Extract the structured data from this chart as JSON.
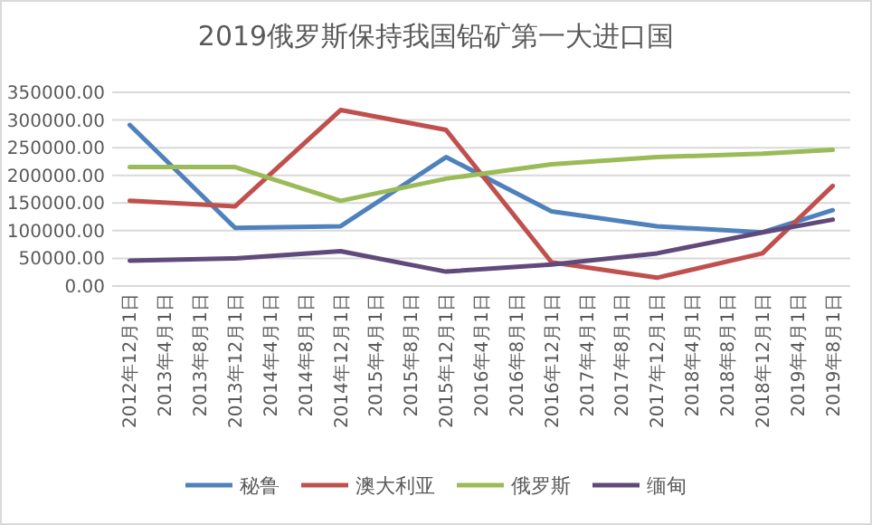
{
  "chart_data": {
    "type": "line",
    "title": "2019俄罗斯保持我国铅矿第一大进口国",
    "categories": [
      "2012年12月1日",
      "2013年4月1日",
      "2013年8月1日",
      "2013年12月1日",
      "2014年4月1日",
      "2014年8月1日",
      "2014年12月1日",
      "2015年4月1日",
      "2015年8月1日",
      "2015年12月1日",
      "2016年4月1日",
      "2016年8月1日",
      "2016年12月1日",
      "2017年4月1日",
      "2017年8月1日",
      "2017年12月1日",
      "2018年4月1日",
      "2018年8月1日",
      "2018年12月1日",
      "2019年4月1日",
      "2019年8月1日"
    ],
    "series": [
      {
        "name": "秘鲁",
        "color": "#4f81bd",
        "values": [
          291000,
          null,
          null,
          105000,
          null,
          null,
          108000,
          null,
          null,
          233000,
          null,
          null,
          135000,
          null,
          null,
          108000,
          null,
          null,
          97000,
          null,
          137000
        ]
      },
      {
        "name": "澳大利亚",
        "color": "#c0504d",
        "values": [
          154000,
          null,
          null,
          144000,
          null,
          null,
          318000,
          null,
          null,
          282000,
          null,
          null,
          43000,
          null,
          null,
          15000,
          null,
          null,
          59000,
          null,
          181000
        ]
      },
      {
        "name": "俄罗斯",
        "color": "#9bbb59",
        "values": [
          215000,
          null,
          null,
          215000,
          null,
          null,
          154000,
          null,
          null,
          194000,
          null,
          null,
          220000,
          null,
          null,
          233000,
          null,
          null,
          239000,
          null,
          246000
        ]
      },
      {
        "name": "缅甸",
        "color": "#604a7b",
        "values": [
          46000,
          null,
          null,
          50000,
          null,
          null,
          63000,
          null,
          null,
          26000,
          null,
          null,
          39000,
          null,
          null,
          59000,
          null,
          null,
          97000,
          null,
          120000
        ]
      }
    ],
    "ylim": [
      0,
      350000
    ],
    "yticks": [
      {
        "value": 0,
        "label": "0.00"
      },
      {
        "value": 50000,
        "label": "50000.00"
      },
      {
        "value": 100000,
        "label": "100000.00"
      },
      {
        "value": 150000,
        "label": "150000.00"
      },
      {
        "value": 200000,
        "label": "200000.00"
      },
      {
        "value": 250000,
        "label": "250000.00"
      },
      {
        "value": 300000,
        "label": "300000.00"
      },
      {
        "value": 350000,
        "label": "350000.00"
      }
    ],
    "grid": "y",
    "legend": "bottom",
    "marker": "none",
    "line_style": "solid"
  }
}
